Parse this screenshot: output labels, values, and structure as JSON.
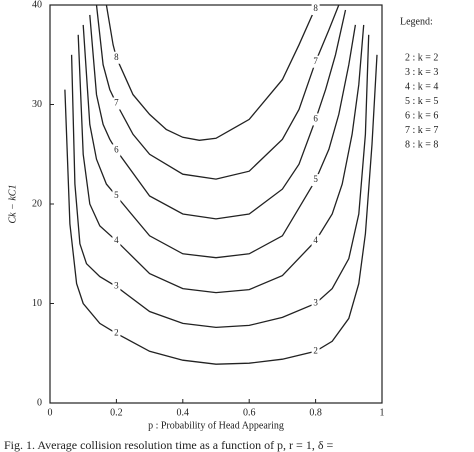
{
  "chart_data": {
    "type": "line",
    "caption": "Fig. 1.  Average collision resolution time as a function of p, r = 1, δ =",
    "x_label": "p : Probability of Head Appearing",
    "y_label": "Ck − kC1",
    "legend_title": "Legend:",
    "xlim": [
      0,
      1
    ],
    "xticks": [
      0,
      0.2,
      0.4,
      0.6,
      0.8,
      1
    ],
    "ylim": [
      0,
      40
    ],
    "yticks": [
      0,
      10,
      20,
      30,
      40
    ],
    "series": [
      {
        "name": "2 : k = 2",
        "label": "2",
        "color": "#222",
        "x": [
          0.045,
          0.06,
          0.08,
          0.1,
          0.15,
          0.2,
          0.3,
          0.4,
          0.5,
          0.6,
          0.7,
          0.8,
          0.85,
          0.9,
          0.93,
          0.95,
          0.97,
          0.985
        ],
        "values": [
          31.5,
          18,
          12,
          10,
          8,
          7,
          5.2,
          4.3,
          3.9,
          4,
          4.4,
          5.2,
          6.2,
          8.5,
          12,
          17,
          26,
          35
        ]
      },
      {
        "name": "3 : k = 3",
        "label": "3",
        "color": "#222",
        "x": [
          0.065,
          0.075,
          0.09,
          0.11,
          0.15,
          0.2,
          0.3,
          0.4,
          0.5,
          0.6,
          0.7,
          0.8,
          0.85,
          0.9,
          0.93,
          0.95,
          0.96
        ],
        "values": [
          35,
          22,
          16,
          14,
          12.7,
          11.7,
          9.2,
          8,
          7.6,
          7.8,
          8.6,
          10,
          11.5,
          14.5,
          19,
          27,
          37
        ]
      },
      {
        "name": "4 : k = 4",
        "label": "4",
        "color": "#222",
        "x": [
          0.085,
          0.1,
          0.12,
          0.15,
          0.2,
          0.3,
          0.4,
          0.5,
          0.6,
          0.7,
          0.8,
          0.85,
          0.88,
          0.91,
          0.93,
          0.945
        ],
        "values": [
          37,
          25,
          20,
          17.8,
          16.3,
          13,
          11.5,
          11.1,
          11.4,
          12.8,
          16.3,
          19,
          22,
          27,
          32,
          38
        ]
      },
      {
        "name": "5 : k = 5",
        "label": "5",
        "color": "#222",
        "x": [
          0.1,
          0.12,
          0.14,
          0.17,
          0.2,
          0.3,
          0.4,
          0.5,
          0.6,
          0.7,
          0.8,
          0.84,
          0.87,
          0.9,
          0.92
        ],
        "values": [
          38,
          28,
          24.5,
          22,
          20.8,
          16.8,
          15,
          14.6,
          15,
          16.8,
          22.4,
          25.5,
          29,
          34,
          38
        ]
      },
      {
        "name": "6 : k = 6",
        "label": "6",
        "color": "#222",
        "x": [
          0.12,
          0.14,
          0.16,
          0.18,
          0.2,
          0.3,
          0.4,
          0.5,
          0.6,
          0.7,
          0.75,
          0.8,
          0.83,
          0.86,
          0.89
        ],
        "values": [
          39,
          31,
          28,
          26.5,
          25.4,
          20.8,
          19,
          18.5,
          19,
          21.5,
          24,
          28.5,
          31.5,
          35,
          39.5
        ]
      },
      {
        "name": "7 : k = 7",
        "label": "7",
        "color": "#222",
        "x": [
          0.14,
          0.16,
          0.18,
          0.2,
          0.25,
          0.3,
          0.4,
          0.5,
          0.6,
          0.7,
          0.75,
          0.8,
          0.84,
          0.87
        ],
        "values": [
          40,
          34,
          31.5,
          30.1,
          27,
          25,
          23,
          22.5,
          23.3,
          26.5,
          29.5,
          34.3,
          37.5,
          40
        ]
      },
      {
        "name": "8 : k = 8",
        "label": "8",
        "color": "#222",
        "x": [
          0.17,
          0.19,
          0.2,
          0.25,
          0.3,
          0.35,
          0.4,
          0.45,
          0.5,
          0.6,
          0.7,
          0.75,
          0.79,
          0.8
        ],
        "values": [
          40,
          36,
          34.7,
          31,
          29,
          27.5,
          26.7,
          26.4,
          26.6,
          28.5,
          32.5,
          36,
          39,
          40
        ]
      }
    ]
  }
}
